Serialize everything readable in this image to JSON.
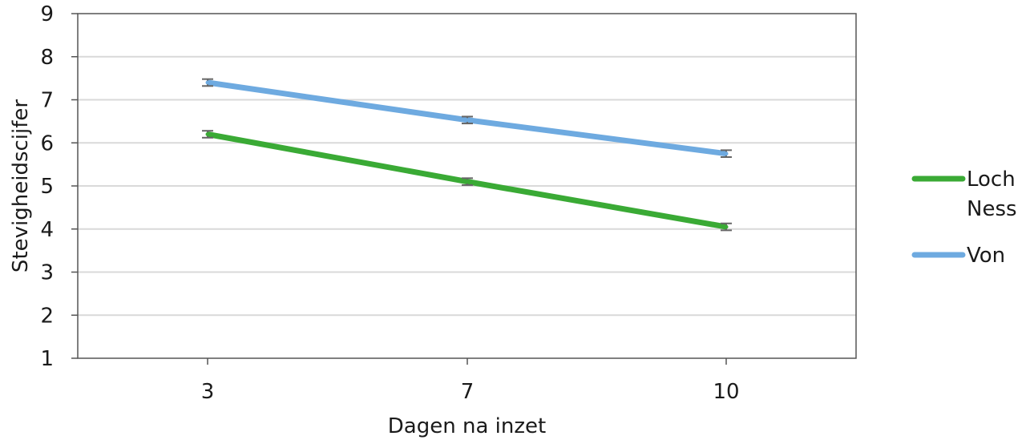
{
  "chart_data": {
    "type": "line",
    "title": "",
    "xlabel": "Dagen na inzet",
    "ylabel": "Stevigheidscijfer",
    "categories": [
      "3",
      "7",
      "10"
    ],
    "ylim": [
      1,
      9
    ],
    "yticks": [
      "1",
      "2",
      "3",
      "4",
      "5",
      "6",
      "7",
      "8",
      "9"
    ],
    "grid": true,
    "legend_position": "right",
    "error_bars": true,
    "series": [
      {
        "name": "Loch Ness",
        "legend_lines": [
          "Loch",
          "Ness"
        ],
        "color": "#3aaa35",
        "values": [
          6.2,
          5.1,
          4.05
        ],
        "errors": [
          0.08,
          0.08,
          0.08
        ]
      },
      {
        "name": "Von",
        "legend_lines": [
          "Von"
        ],
        "color": "#6eaae0",
        "values": [
          7.4,
          6.53,
          5.75
        ],
        "errors": [
          0.08,
          0.08,
          0.08
        ]
      }
    ]
  }
}
